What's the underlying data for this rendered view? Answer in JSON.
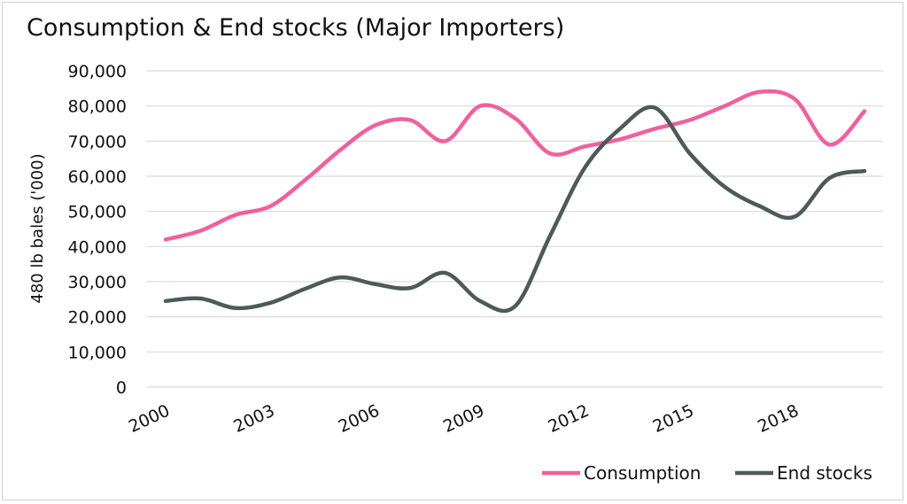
{
  "chart_data": {
    "type": "line",
    "title": "Consumption & End stocks (Major Importers)",
    "ylabel": "480 lb bales ('000)",
    "xlabel": "",
    "ylim": [
      0,
      90000
    ],
    "yticks": [
      0,
      10000,
      20000,
      30000,
      40000,
      50000,
      60000,
      70000,
      80000,
      90000
    ],
    "ytick_labels": [
      "0",
      "10,000",
      "20,000",
      "30,000",
      "40,000",
      "50,000",
      "60,000",
      "70,000",
      "80,000",
      "90,000"
    ],
    "x": [
      2000,
      2001,
      2002,
      2003,
      2004,
      2005,
      2006,
      2007,
      2008,
      2009,
      2010,
      2011,
      2012,
      2013,
      2014,
      2015,
      2016,
      2017,
      2018,
      2019,
      2020
    ],
    "xtick_labels": [
      "2000",
      "2003",
      "2006",
      "2009",
      "2012",
      "2015",
      "2018"
    ],
    "xtick_values": [
      2000,
      2003,
      2006,
      2009,
      2012,
      2015,
      2018
    ],
    "grid": true,
    "legend_position": "bottom-right",
    "series": [
      {
        "name": "Consumption",
        "color": "#f0609e",
        "values": [
          42000,
          44500,
          49000,
          51500,
          59000,
          67500,
          74500,
          76000,
          70000,
          80000,
          76500,
          66500,
          68500,
          70500,
          73500,
          76000,
          80000,
          84000,
          82000,
          69000,
          78500
        ]
      },
      {
        "name": "End stocks",
        "color": "#4d5a5a",
        "values": [
          24500,
          25200,
          22500,
          24000,
          28000,
          31200,
          29300,
          28200,
          32500,
          24500,
          23000,
          43000,
          62500,
          73500,
          79500,
          66500,
          57000,
          51500,
          48500,
          59500,
          61500
        ]
      }
    ]
  }
}
